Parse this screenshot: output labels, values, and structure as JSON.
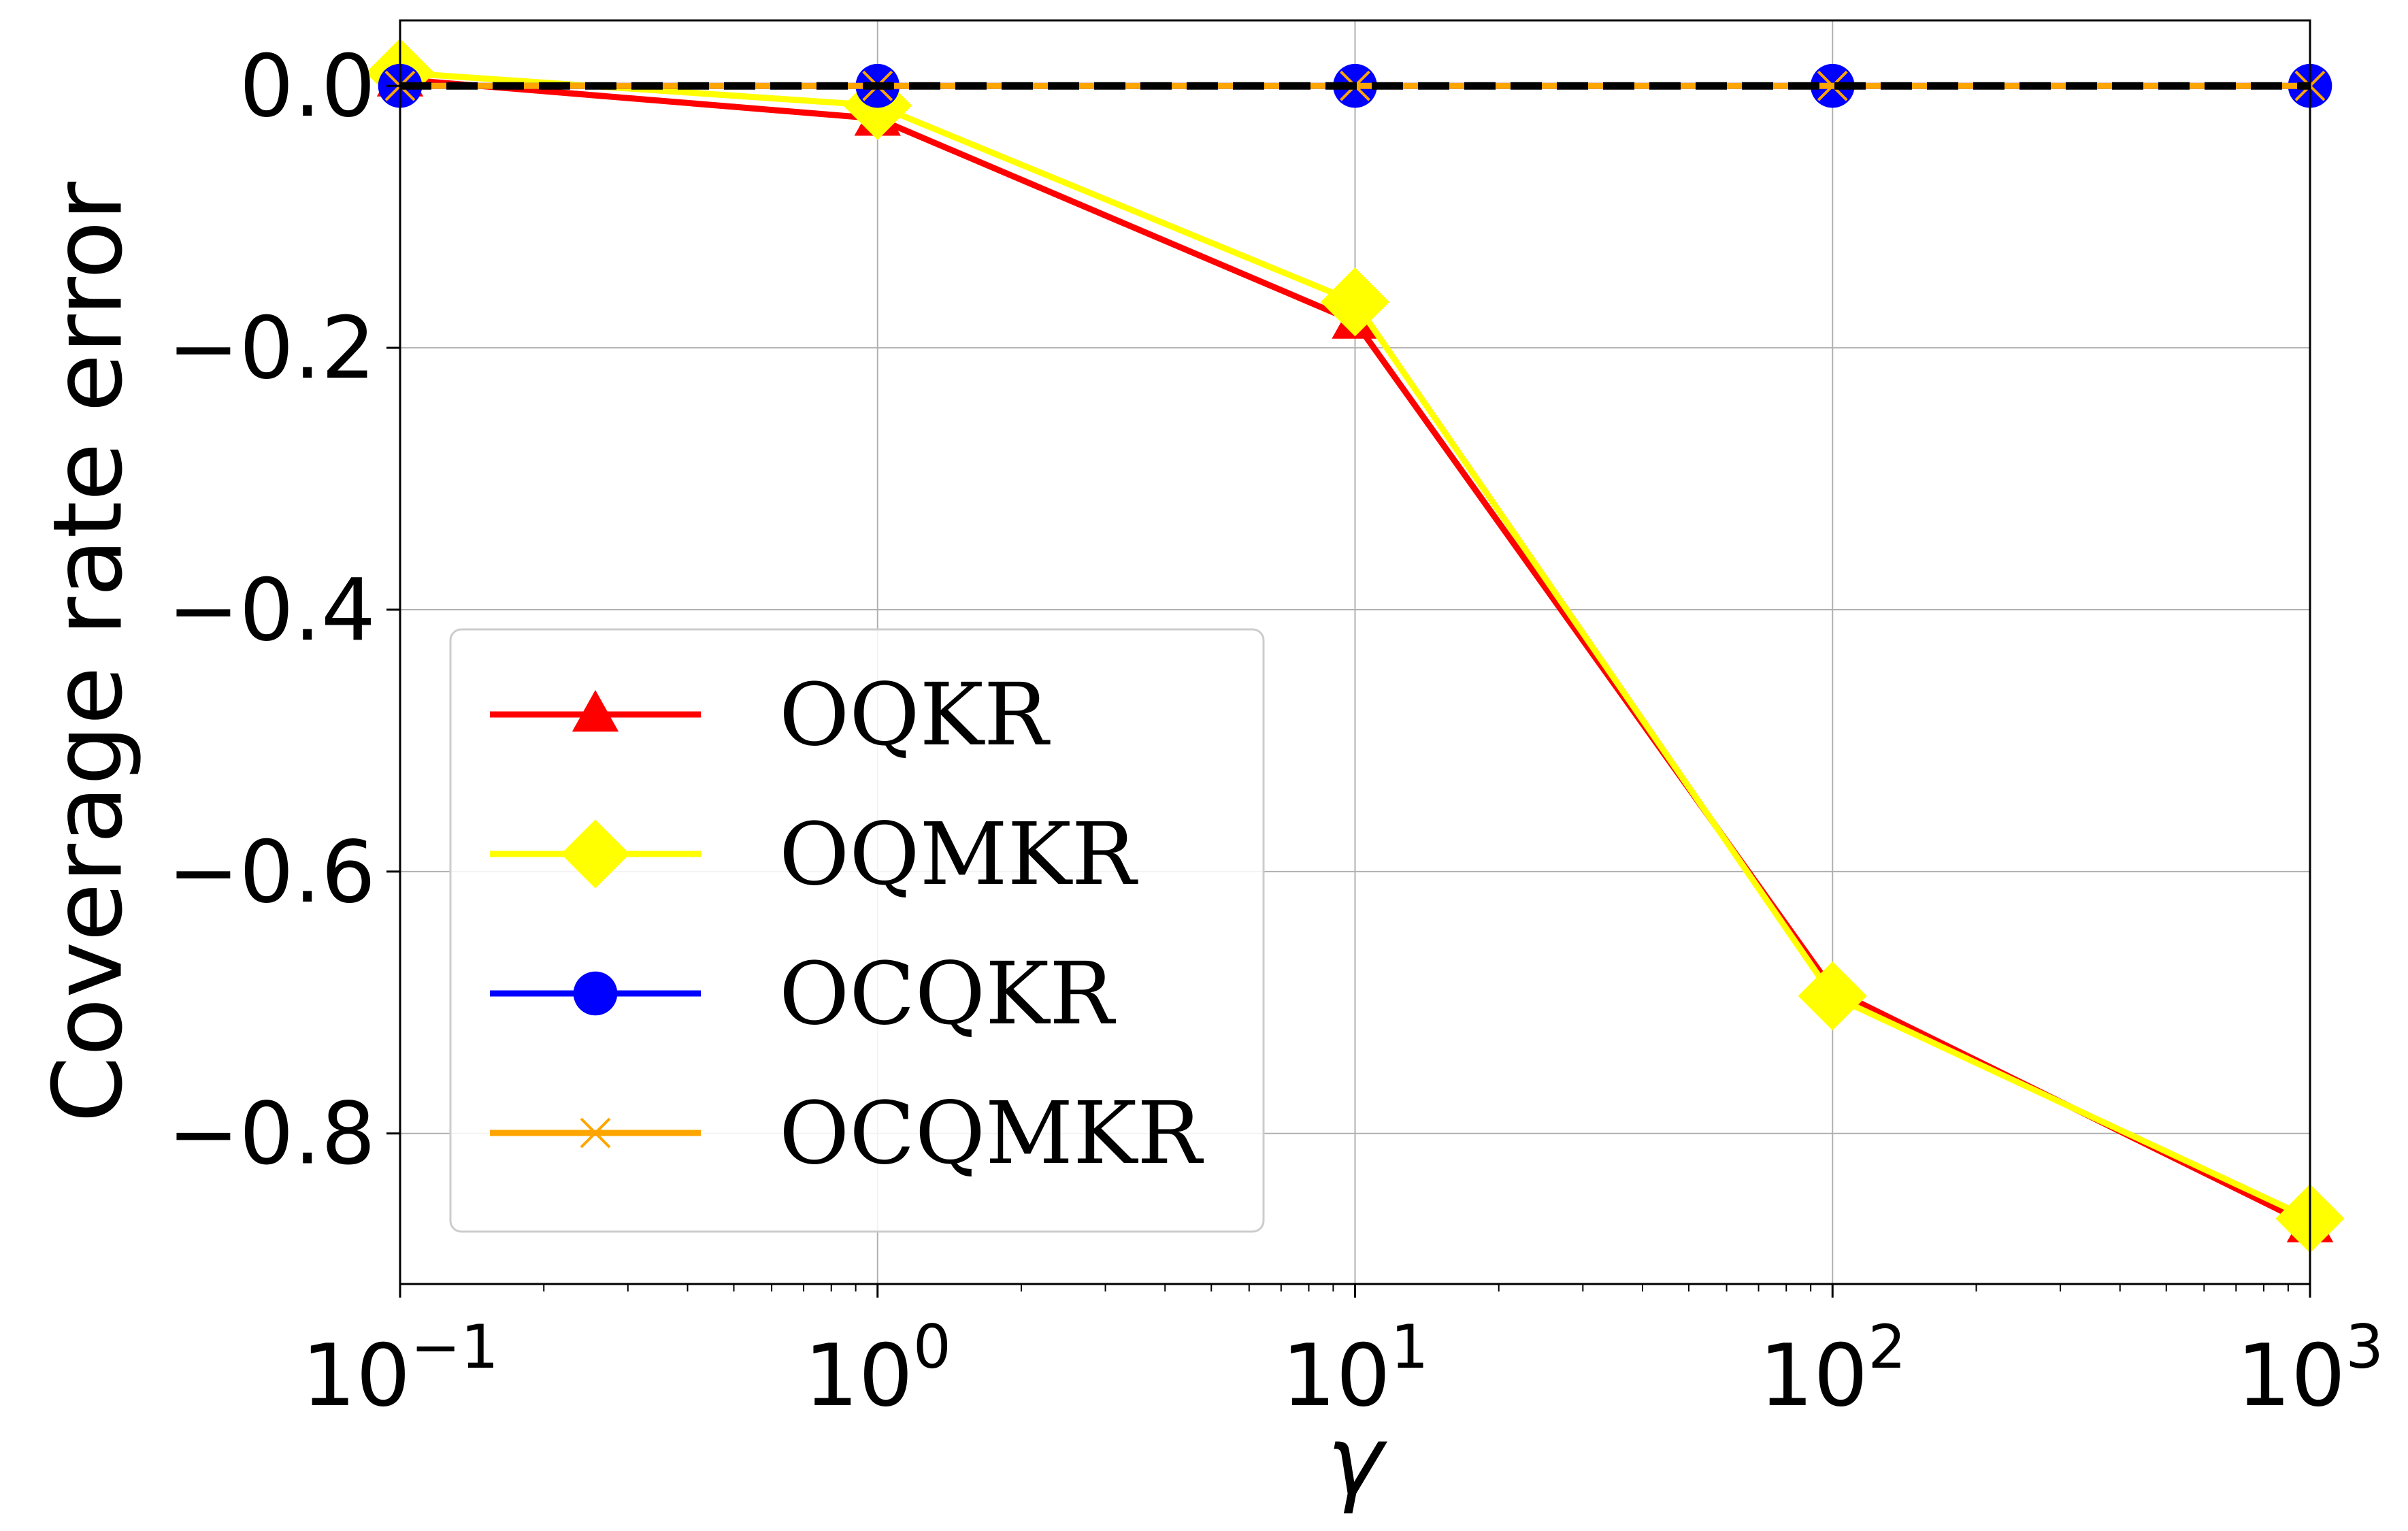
{
  "chart_data": {
    "type": "line",
    "xlabel": "γ",
    "ylabel": "Coverage rate error",
    "xscale": "log",
    "x": [
      0.1,
      1,
      10,
      100,
      1000
    ],
    "xlim": [
      0.1,
      1000
    ],
    "ylim": [
      -0.915,
      0.05
    ],
    "grid": true,
    "legend_position": "lower-left",
    "x_ticks": [
      {
        "value": 0.1,
        "base": "10",
        "exp": "−1"
      },
      {
        "value": 1,
        "base": "10",
        "exp": "0"
      },
      {
        "value": 10,
        "base": "10",
        "exp": "1"
      },
      {
        "value": 100,
        "base": "10",
        "exp": "2"
      },
      {
        "value": 1000,
        "base": "10",
        "exp": "3"
      }
    ],
    "y_ticks": [
      {
        "value": 0.0,
        "label": "0.0"
      },
      {
        "value": -0.2,
        "label": "−0.2"
      },
      {
        "value": -0.4,
        "label": "−0.4"
      },
      {
        "value": -0.6,
        "label": "−0.6"
      },
      {
        "value": -0.8,
        "label": "−0.8"
      }
    ],
    "reference_line": {
      "y": 0.0,
      "color": "#000000",
      "style": "dashed"
    },
    "series": [
      {
        "name": "OQKR",
        "color": "#ff0000",
        "marker": "triangle",
        "values": [
          0.005,
          -0.025,
          -0.18,
          -0.69,
          -0.87
        ]
      },
      {
        "name": "OQMKR",
        "color": "#ffff00",
        "marker": "diamond",
        "values": [
          0.01,
          -0.015,
          -0.165,
          -0.695,
          -0.865
        ]
      },
      {
        "name": "OCQKR",
        "color": "#0000ff",
        "marker": "circle",
        "values": [
          0.0,
          0.0,
          0.0,
          0.0,
          0.0
        ]
      },
      {
        "name": "OCQMKR",
        "color": "#ffa500",
        "marker": "x",
        "values": [
          0.0,
          0.0,
          0.0,
          0.0,
          0.0
        ]
      }
    ]
  }
}
